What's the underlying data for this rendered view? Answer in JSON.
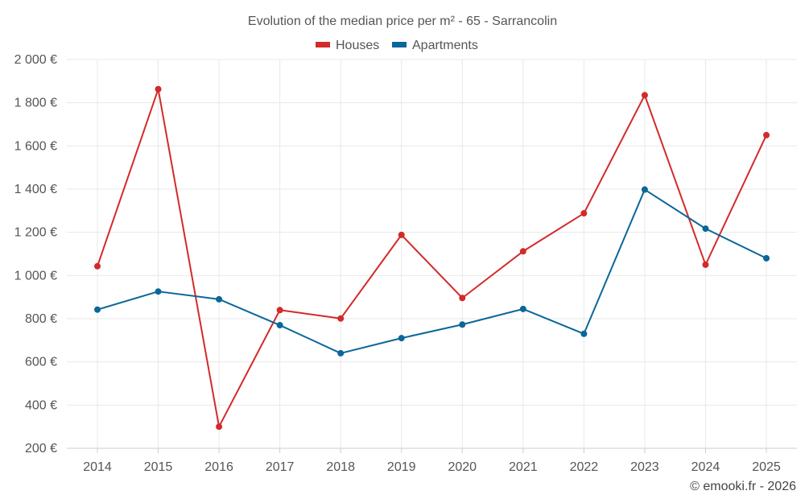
{
  "chart_data": {
    "type": "line",
    "title": "Evolution of the median price per m² - 65 - Sarrancolin",
    "categories": [
      "2014",
      "2015",
      "2016",
      "2017",
      "2018",
      "2019",
      "2020",
      "2021",
      "2022",
      "2023",
      "2024",
      "2025"
    ],
    "series": [
      {
        "name": "Houses",
        "color": "#d32a2a",
        "values": [
          1043,
          1863,
          300,
          840,
          801,
          1188,
          896,
          1112,
          1288,
          1835,
          1050,
          1650
        ]
      },
      {
        "name": "Apartments",
        "color": "#0b6699",
        "values": [
          842,
          926,
          890,
          770,
          640,
          710,
          773,
          845,
          730,
          1398,
          1217,
          1080
        ]
      }
    ],
    "y_ticks": [
      200,
      400,
      600,
      800,
      1000,
      1200,
      1400,
      1600,
      1800,
      2000
    ],
    "y_tick_labels": [
      "200 €",
      "400 €",
      "600 €",
      "800 €",
      "1 000 €",
      "1 200 €",
      "1 400 €",
      "1 600 €",
      "1 800 €",
      "2 000 €"
    ],
    "ylim": [
      200,
      2000
    ],
    "xlabel": "",
    "ylabel": "",
    "grid": true,
    "legend_position": "top-center"
  },
  "credit": "© emooki.fr - 2026"
}
